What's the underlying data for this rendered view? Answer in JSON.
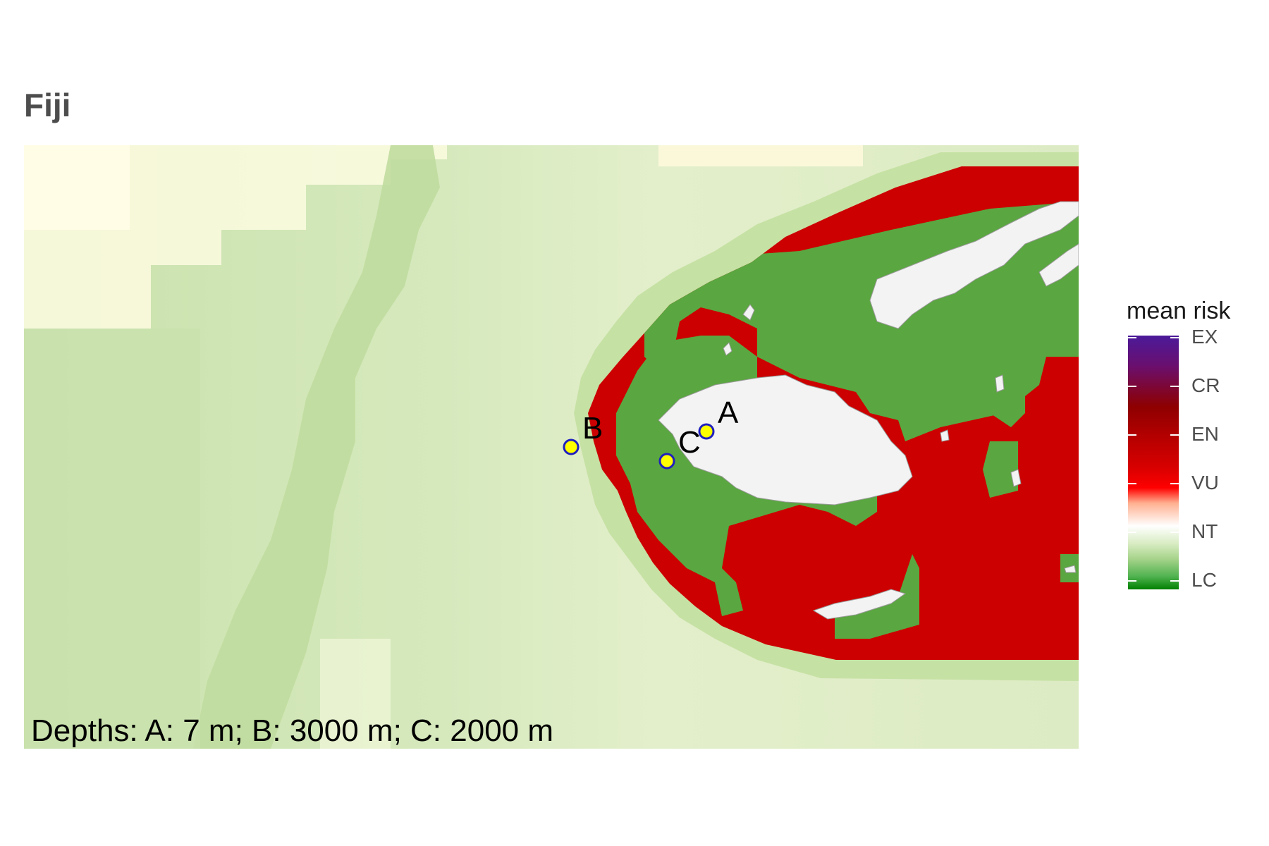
{
  "title": "Fiji",
  "caption": "Depths: A: 7 m; B: 3000 m; C: 2000 m",
  "sites": [
    {
      "label": "A",
      "depth": "7 m"
    },
    {
      "label": "B",
      "depth": "3000 m"
    },
    {
      "label": "C",
      "depth": "2000 m"
    }
  ],
  "legend": {
    "title": "mean risk",
    "categories": [
      "EX",
      "CR",
      "EN",
      "VU",
      "NT",
      "LC"
    ]
  },
  "colors": {
    "high_risk": "#cc0000",
    "low_risk": "#5aa640",
    "ocean_light": "#e2eec8",
    "ocean_green": "#c5e0a8",
    "ocean_yellow": "#fdfbe0",
    "land": "#f3f3f3",
    "site_fill": "#ffff00",
    "site_stroke": "#1f1fbf"
  }
}
